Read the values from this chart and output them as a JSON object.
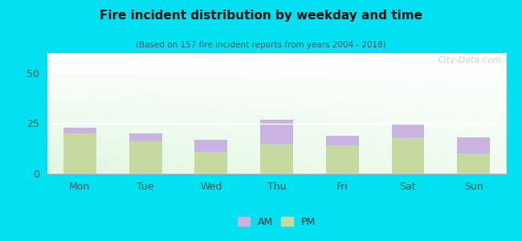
{
  "title": "Fire incident distribution by weekday and time",
  "subtitle": "(Based on 157 fire incident reports from years 2004 - 2018)",
  "categories": [
    "Mon",
    "Tue",
    "Wed",
    "Thu",
    "Fri",
    "Sat",
    "Sun"
  ],
  "pm_values": [
    20,
    16,
    11,
    15,
    14,
    18,
    10
  ],
  "am_values": [
    3,
    4,
    6,
    12,
    5,
    7,
    8
  ],
  "am_color": "#c9b3e0",
  "pm_color": "#c5d9a0",
  "background_outer": "#00e0f0",
  "ylim": [
    0,
    60
  ],
  "yticks": [
    0,
    25,
    50
  ],
  "bar_width": 0.5,
  "legend_am": "AM",
  "legend_pm": "PM",
  "watermark": "City-Data.com"
}
